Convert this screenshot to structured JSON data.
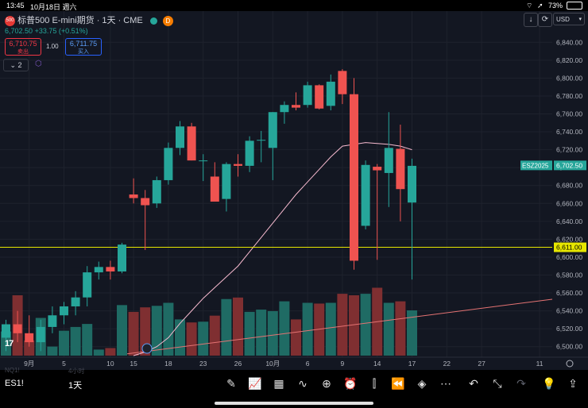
{
  "status_bar": {
    "time": "13:45",
    "date": "10月18日 週六",
    "battery": "73%",
    "wifi_icon": "wifi-icon",
    "battery_icon": "battery-icon"
  },
  "header": {
    "symbol_title": "标普500 E-mini期货 · 1天 · CME",
    "icon_badge": "500",
    "d_badge": "D",
    "price": "6,702.50",
    "change": "+33.75 (+0.51%)",
    "sell_price": "6,710.75",
    "sell_label": "卖出",
    "spread": "1.00",
    "buy_price": "6,711.75",
    "buy_label": "买入",
    "indicator_count": "2",
    "currency": "USD",
    "sort_down": "↓",
    "refresh": "⟳",
    "logo": "17"
  },
  "colors": {
    "up": "#26a69a",
    "down": "#ef5350",
    "up_vol": "#1f6b64",
    "down_vol": "#7f2f31",
    "grid": "#1e222d",
    "hline": "#e6e600",
    "sma_short": "#f8bbd0",
    "sma_long": "#e57373"
  },
  "chart_data": {
    "type": "candlestick",
    "title": "标普500 E-mini期货 · 1天 · CME",
    "ylim": [
      6490,
      6850
    ],
    "y_ticks": [
      6500,
      6520,
      6540,
      6560,
      6580,
      6600,
      6620,
      6640,
      6660,
      6680,
      6700,
      6720,
      6740,
      6760,
      6780,
      6800,
      6820,
      6840
    ],
    "y_tick_labels": [
      "6,500.00",
      "6,520.00",
      "6,540.00",
      "6,560.00",
      "6,580.00",
      "6,600.00",
      "6,620.00",
      "6,640.00",
      "6,660.00",
      "6,680.00",
      "6,700.00",
      "6,720.00",
      "6,740.00",
      "6,760.00",
      "6,780.00",
      "6,800.00",
      "6,820.00",
      "6,840.00"
    ],
    "x_labels": [
      {
        "text": "9月",
        "idx": 2
      },
      {
        "text": "5",
        "idx": 5
      },
      {
        "text": "10",
        "idx": 9
      },
      {
        "text": "15",
        "idx": 11
      },
      {
        "text": "18",
        "idx": 14
      },
      {
        "text": "23",
        "idx": 17
      },
      {
        "text": "26",
        "idx": 20
      },
      {
        "text": "10月",
        "idx": 23
      },
      {
        "text": "6",
        "idx": 26
      },
      {
        "text": "9",
        "idx": 29
      },
      {
        "text": "14",
        "idx": 32
      },
      {
        "text": "17",
        "idx": 35
      },
      {
        "text": "22",
        "idx": 38
      },
      {
        "text": "27",
        "idx": 41
      },
      {
        "text": "11",
        "idx": 46
      }
    ],
    "candles": [
      {
        "o": 6510,
        "h": 6530,
        "l": 6495,
        "c": 6525
      },
      {
        "o": 6525,
        "h": 6540,
        "l": 6505,
        "c": 6515
      },
      {
        "o": 6515,
        "h": 6535,
        "l": 6500,
        "c": 6505
      },
      {
        "o": 6505,
        "h": 6530,
        "l": 6495,
        "c": 6522
      },
      {
        "o": 6522,
        "h": 6545,
        "l": 6515,
        "c": 6535
      },
      {
        "o": 6535,
        "h": 6550,
        "l": 6525,
        "c": 6545
      },
      {
        "o": 6545,
        "h": 6562,
        "l": 6535,
        "c": 6555
      },
      {
        "o": 6555,
        "h": 6590,
        "l": 6545,
        "c": 6583
      },
      {
        "o": 6583,
        "h": 6595,
        "l": 6575,
        "c": 6589
      },
      {
        "o": 6589,
        "h": 6596,
        "l": 6575,
        "c": 6584
      },
      {
        "o": 6584,
        "h": 6616,
        "l": 6582,
        "c": 6614
      },
      {
        "o": 6670,
        "h": 6688,
        "l": 6660,
        "c": 6666
      },
      {
        "o": 6666,
        "h": 6675,
        "l": 6608,
        "c": 6658
      },
      {
        "o": 6660,
        "h": 6690,
        "l": 6655,
        "c": 6686
      },
      {
        "o": 6686,
        "h": 6728,
        "l": 6681,
        "c": 6722
      },
      {
        "o": 6722,
        "h": 6752,
        "l": 6714,
        "c": 6746
      },
      {
        "o": 6746,
        "h": 6750,
        "l": 6708,
        "c": 6708
      },
      {
        "o": 6708,
        "h": 6715,
        "l": 6685,
        "c": 6708
      },
      {
        "o": 6690,
        "h": 6706,
        "l": 6662,
        "c": 6662
      },
      {
        "o": 6665,
        "h": 6706,
        "l": 6651,
        "c": 6704
      },
      {
        "o": 6704,
        "h": 6715,
        "l": 6690,
        "c": 6702
      },
      {
        "o": 6702,
        "h": 6735,
        "l": 6695,
        "c": 6730
      },
      {
        "o": 6731,
        "h": 6741,
        "l": 6706,
        "c": 6731
      },
      {
        "o": 6722,
        "h": 6762,
        "l": 6686,
        "c": 6762
      },
      {
        "o": 6762,
        "h": 6774,
        "l": 6749,
        "c": 6770
      },
      {
        "o": 6770,
        "h": 6784,
        "l": 6764,
        "c": 6767
      },
      {
        "o": 6770,
        "h": 6796,
        "l": 6767,
        "c": 6792
      },
      {
        "o": 6792,
        "h": 6793,
        "l": 6765,
        "c": 6766
      },
      {
        "o": 6769,
        "h": 6804,
        "l": 6764,
        "c": 6796
      },
      {
        "o": 6808,
        "h": 6810,
        "l": 6771,
        "c": 6782
      },
      {
        "o": 6782,
        "h": 6800,
        "l": 6586,
        "c": 6596
      },
      {
        "o": 6635,
        "h": 6708,
        "l": 6631,
        "c": 6703
      },
      {
        "o": 6701,
        "h": 6704,
        "l": 6597,
        "c": 6697
      },
      {
        "o": 6694,
        "h": 6762,
        "l": 6656,
        "c": 6722
      },
      {
        "o": 6721,
        "h": 6748,
        "l": 6640,
        "c": 6676
      },
      {
        "o": 6661,
        "h": 6710,
        "l": 6575,
        "c": 6702
      }
    ],
    "volume": [
      32,
      80,
      20,
      50,
      12,
      33,
      38,
      42,
      8,
      10,
      67,
      58,
      64,
      66,
      70,
      48,
      44,
      45,
      53,
      75,
      77,
      58,
      61,
      59,
      72,
      48,
      70,
      69,
      70,
      82,
      80,
      82,
      90,
      70,
      72,
      60
    ],
    "sma_short": [
      null,
      null,
      null,
      null,
      null,
      null,
      null,
      null,
      null,
      null,
      null,
      6490,
      6494,
      6500,
      6510,
      6526,
      6540,
      6554,
      6566,
      6578,
      6590,
      6606,
      6622,
      6638,
      6654,
      6670,
      6684,
      6698,
      6712,
      6724,
      6726,
      6728,
      6727,
      6726,
      6724,
      6720
    ],
    "sma_long_start": 6492,
    "sma_long_end": 6553,
    "hline": {
      "value": 6611,
      "label": "6,611.00"
    },
    "last_price": {
      "value": 6702.5,
      "symbol": "ESZ2025",
      "label": "6,702.50"
    }
  },
  "bottom": {
    "symbol": "ES1!",
    "interval": "1天",
    "ghost_left": "NQ1!",
    "ghost_right": "4小时"
  },
  "toolbar": [
    {
      "name": "pen-icon",
      "glyph": "✎"
    },
    {
      "name": "chart-type-icon",
      "glyph": "📈"
    },
    {
      "name": "grid-icon",
      "glyph": "▦"
    },
    {
      "name": "indicators-icon",
      "glyph": "∿"
    },
    {
      "name": "add-icon",
      "glyph": "⊕"
    },
    {
      "name": "alert-icon",
      "glyph": "⏰"
    },
    {
      "name": "candles-icon",
      "glyph": "⫿"
    },
    {
      "name": "replay-icon",
      "glyph": "⏪"
    },
    {
      "name": "layers-icon",
      "glyph": "◈"
    },
    {
      "name": "more-icon",
      "glyph": "⋯"
    },
    {
      "name": "undo-icon",
      "glyph": "↶"
    },
    {
      "name": "collapse-icon",
      "glyph": "⤡"
    },
    {
      "name": "redo-icon",
      "glyph": "↷"
    },
    {
      "name": "ideas-icon",
      "glyph": "💡"
    },
    {
      "name": "share-icon",
      "glyph": "⇪"
    }
  ]
}
